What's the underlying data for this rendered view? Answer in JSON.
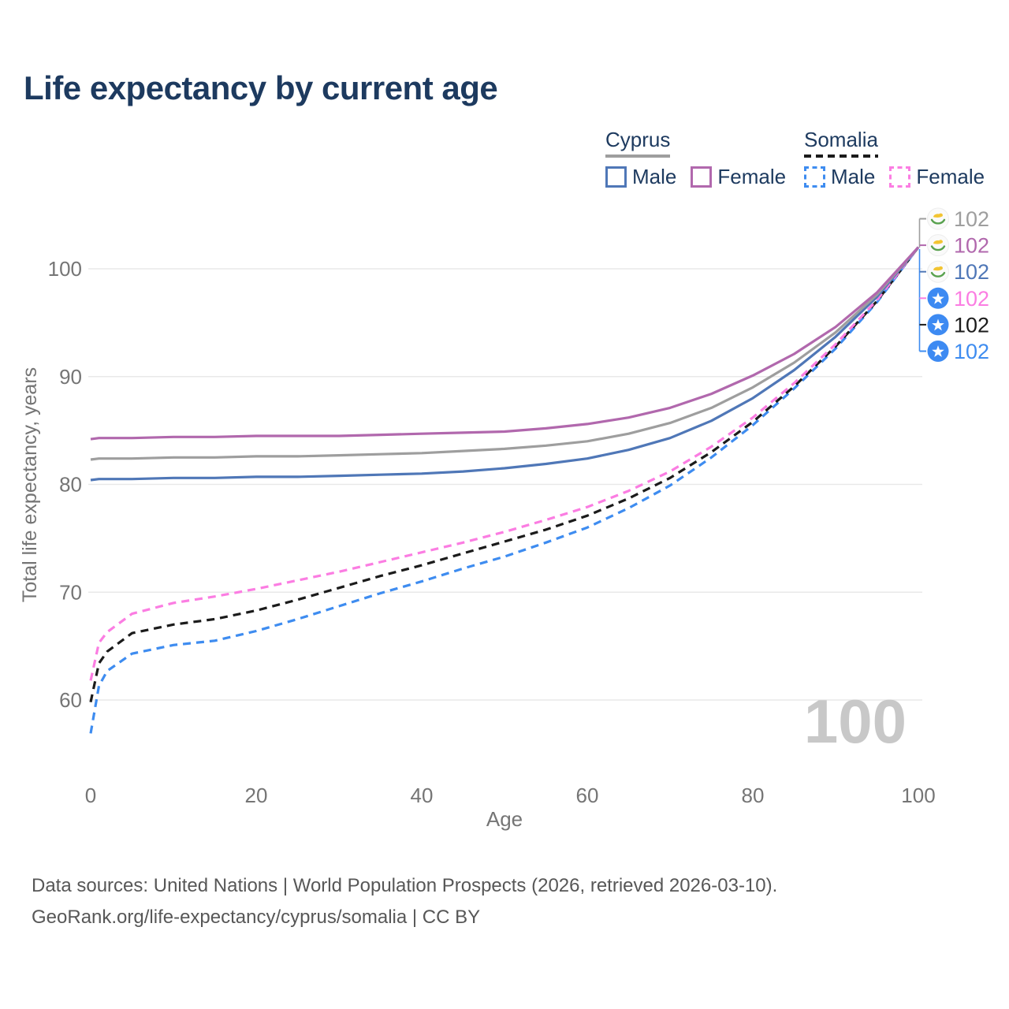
{
  "title": "Life expectancy by current age",
  "colors": {
    "title_text": "#1d3a5f",
    "legend_text": "#1d3a5f",
    "axis_text": "#757575",
    "grid": "#e9e9e9",
    "watermark": "#c8c8c8",
    "footer_text": "#575757",
    "cyprus_male": "#4f77b7",
    "cyprus_female": "#b168ad",
    "cyprus_both": "#9e9e9e",
    "somalia_male": "#3e8cf0",
    "somalia_female": "#fb7de2",
    "somalia_both": "#1b1b1b",
    "flag_cyprus_bg": "#fafafa",
    "flag_cyprus_island": "#f2c431",
    "flag_cyprus_wreath": "#58a14e",
    "flag_somalia_bg": "#3d8af2",
    "flag_somalia_star": "#ffffff"
  },
  "legend": {
    "groups": [
      {
        "country": "Cyprus",
        "style": "solid",
        "underline_key": "cyprus_both",
        "items": [
          {
            "label": "Male",
            "color_key": "cyprus_male"
          },
          {
            "label": "Female",
            "color_key": "cyprus_female"
          }
        ]
      },
      {
        "country": "Somalia",
        "style": "dashed",
        "underline_key": "somalia_both",
        "items": [
          {
            "label": "Male",
            "color_key": "somalia_male"
          },
          {
            "label": "Female",
            "color_key": "somalia_female"
          }
        ]
      }
    ]
  },
  "chart_data": {
    "type": "line",
    "title": "Life expectancy by current age",
    "xlabel": "Age",
    "ylabel": "Total life expectancy, years",
    "x_ticks": [
      0,
      20,
      40,
      60,
      80,
      100
    ],
    "y_ticks": [
      60,
      70,
      80,
      90,
      100
    ],
    "xlim": [
      0,
      100
    ],
    "ylim": [
      56,
      103
    ],
    "grid": "horizontal gridlines only",
    "legend_position": "top-right",
    "age_counter": "100",
    "x": [
      0,
      1,
      2,
      5,
      10,
      15,
      20,
      25,
      30,
      35,
      40,
      45,
      50,
      55,
      60,
      65,
      70,
      75,
      80,
      85,
      90,
      95,
      100
    ],
    "series": [
      {
        "name": "Somalia Male",
        "country": "Somalia",
        "sex": "Male",
        "style": "dashed",
        "color_key": "somalia_male",
        "values": [
          56.9,
          61.3,
          62.7,
          64.3,
          65.1,
          65.5,
          66.4,
          67.5,
          68.7,
          69.9,
          71.0,
          72.2,
          73.3,
          74.6,
          76.0,
          77.8,
          79.9,
          82.5,
          85.5,
          88.9,
          92.6,
          96.9,
          102
        ]
      },
      {
        "name": "Somalia (both sexes)",
        "country": "Somalia",
        "sex": "Both",
        "style": "dashed",
        "color_key": "somalia_both",
        "values": [
          59.8,
          63.4,
          64.5,
          66.2,
          67.0,
          67.5,
          68.3,
          69.3,
          70.4,
          71.5,
          72.5,
          73.6,
          74.7,
          75.8,
          77.1,
          78.7,
          80.6,
          83.0,
          85.8,
          89.1,
          92.8,
          97.0,
          102
        ]
      },
      {
        "name": "Somalia Female",
        "country": "Somalia",
        "sex": "Female",
        "style": "dashed",
        "color_key": "somalia_female",
        "values": [
          61.8,
          65.3,
          66.3,
          68.0,
          69.0,
          69.6,
          70.3,
          71.1,
          71.9,
          72.8,
          73.7,
          74.6,
          75.6,
          76.7,
          77.9,
          79.4,
          81.2,
          83.5,
          86.2,
          89.4,
          93.0,
          97.1,
          102
        ]
      },
      {
        "name": "Cyprus Male",
        "country": "Cyprus",
        "sex": "Male",
        "style": "solid",
        "color_key": "cyprus_male",
        "values": [
          80.4,
          80.5,
          80.5,
          80.5,
          80.6,
          80.6,
          80.7,
          80.7,
          80.8,
          80.9,
          81.0,
          81.2,
          81.5,
          81.9,
          82.4,
          83.2,
          84.3,
          85.9,
          88.0,
          90.6,
          93.7,
          97.4,
          102
        ]
      },
      {
        "name": "Cyprus (both sexes)",
        "country": "Cyprus",
        "sex": "Both",
        "style": "solid",
        "color_key": "cyprus_both",
        "values": [
          82.3,
          82.4,
          82.4,
          82.4,
          82.5,
          82.5,
          82.6,
          82.6,
          82.7,
          82.8,
          82.9,
          83.1,
          83.3,
          83.6,
          84.0,
          84.7,
          85.7,
          87.1,
          89.0,
          91.3,
          94.1,
          97.6,
          102
        ]
      },
      {
        "name": "Cyprus Female",
        "country": "Cyprus",
        "sex": "Female",
        "style": "solid",
        "color_key": "cyprus_female",
        "values": [
          84.2,
          84.3,
          84.3,
          84.3,
          84.4,
          84.4,
          84.5,
          84.5,
          84.5,
          84.6,
          84.7,
          84.8,
          84.9,
          85.2,
          85.6,
          86.2,
          87.1,
          88.4,
          90.1,
          92.1,
          94.6,
          97.8,
          102
        ]
      }
    ],
    "end_labels": [
      {
        "text": "102",
        "flag": "cyprus",
        "color_key": "cyprus_both"
      },
      {
        "text": "102",
        "flag": "cyprus",
        "color_key": "cyprus_female"
      },
      {
        "text": "102",
        "flag": "cyprus",
        "color_key": "cyprus_male"
      },
      {
        "text": "102",
        "flag": "somalia",
        "color_key": "somalia_female"
      },
      {
        "text": "102",
        "flag": "somalia",
        "color_key": "somalia_both"
      },
      {
        "text": "102",
        "flag": "somalia",
        "color_key": "somalia_male"
      }
    ]
  },
  "footer": {
    "line1": "Data sources: United Nations | World Population Prospects (2026, retrieved 2026-03-10).",
    "line2": "GeoRank.org/life-expectancy/cyprus/somalia | CC BY"
  }
}
